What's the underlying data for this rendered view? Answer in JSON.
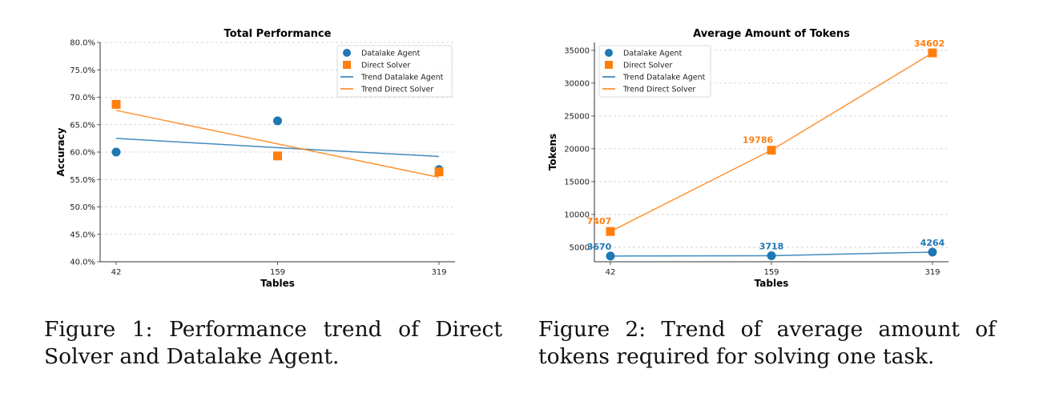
{
  "chart_data": [
    {
      "type": "scatter",
      "title": "Total Performance",
      "xlabel": "Tables",
      "ylabel": "Accuracy",
      "x_categories": [
        "42",
        "159",
        "319"
      ],
      "ylim": [
        40.0,
        80.0
      ],
      "y_ticks": [
        "40.0%",
        "45.0%",
        "50.0%",
        "55.0%",
        "60.0%",
        "65.0%",
        "70.0%",
        "75.0%",
        "80.0%"
      ],
      "grid": "horizontal-dashed",
      "legend_position": "top-right",
      "series": [
        {
          "name": "Datalake Agent",
          "kind": "scatter",
          "marker": "circle",
          "color": "#1f77b4",
          "values": [
            60.0,
            65.7,
            56.8
          ]
        },
        {
          "name": "Direct Solver",
          "kind": "scatter",
          "marker": "square",
          "color": "#ff7f0e",
          "values": [
            68.7,
            59.3,
            56.4
          ]
        },
        {
          "name": "Trend Datalake Agent",
          "kind": "line",
          "color": "#1f77b4",
          "values": [
            62.5,
            60.8,
            59.2
          ]
        },
        {
          "name": "Trend Direct Solver",
          "kind": "line",
          "color": "#ff7f0e",
          "values": [
            67.6,
            61.5,
            55.4
          ]
        }
      ]
    },
    {
      "type": "line",
      "title": "Average Amount of Tokens",
      "xlabel": "Tables",
      "ylabel": "Tokens",
      "x_categories": [
        "42",
        "159",
        "319"
      ],
      "ylim": [
        2800,
        36200
      ],
      "y_ticks": [
        "5000",
        "10000",
        "15000",
        "20000",
        "25000",
        "30000",
        "35000"
      ],
      "grid": "horizontal-dashed",
      "legend_position": "top-left",
      "series": [
        {
          "name": "Datalake Agent",
          "kind": "scatter",
          "marker": "circle",
          "color": "#1f77b4",
          "values": [
            3670,
            3718,
            4264
          ],
          "labels": [
            "3670",
            "3718",
            "4264"
          ]
        },
        {
          "name": "Direct Solver",
          "kind": "scatter",
          "marker": "square",
          "color": "#ff7f0e",
          "values": [
            7407,
            19786,
            34602
          ],
          "labels": [
            "7407",
            "19786",
            "34602"
          ]
        },
        {
          "name": "Trend Datalake Agent",
          "kind": "line",
          "color": "#1f77b4",
          "values": [
            3670,
            3718,
            4264
          ]
        },
        {
          "name": "Trend Direct Solver",
          "kind": "line",
          "color": "#ff7f0e",
          "values": [
            7407,
            19786,
            34602
          ]
        }
      ]
    }
  ],
  "captions": {
    "fig1": "Figure 1: Performance trend of Direct Solver and Datalake Agent.",
    "fig2": "Figure 2: Trend of average amount of tokens required for solving one task."
  }
}
